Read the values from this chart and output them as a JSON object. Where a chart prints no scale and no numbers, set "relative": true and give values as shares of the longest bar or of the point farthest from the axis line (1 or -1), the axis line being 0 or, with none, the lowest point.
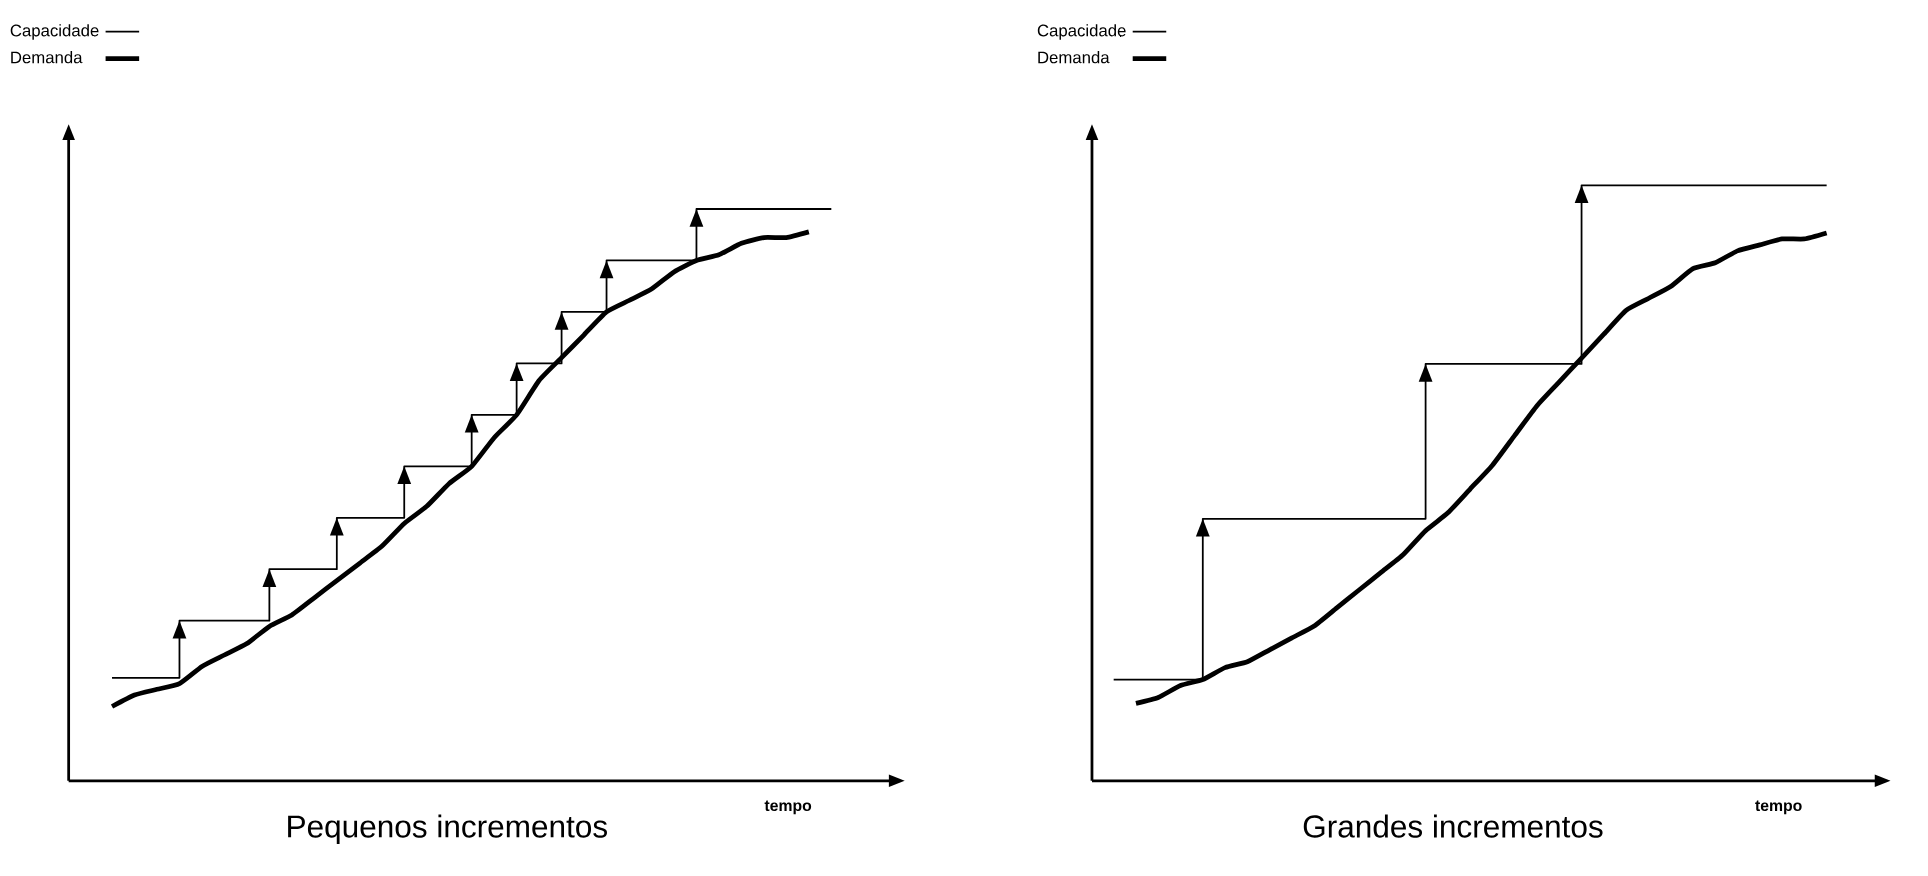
{
  "chart_data": [
    {
      "type": "line",
      "title": "Pequenos incrementos",
      "xlabel": "tempo",
      "relative": true,
      "legend": "top left",
      "marker": "none",
      "line_style": "solid",
      "categories": [
        null,
        null,
        null,
        null,
        null,
        null,
        null,
        null,
        null,
        null,
        null,
        null,
        null,
        null,
        null,
        null,
        null,
        null,
        null,
        null,
        null,
        null,
        null,
        null,
        null,
        null,
        null,
        null,
        null,
        null,
        null,
        null,
        null
      ],
      "series": [
        {
          "name": "Capacidade",
          "type": "step",
          "color": "#000000",
          "values": [
            0.18,
            0.18,
            0.18,
            0.28,
            0.28,
            0.28,
            0.28,
            0.37,
            0.37,
            0.37,
            0.46,
            0.46,
            0.46,
            0.55,
            0.55,
            0.55,
            0.64,
            0.64,
            0.73,
            0.73,
            0.82,
            0.82,
            0.91,
            0.91,
            0.91,
            0.91,
            1,
            1,
            1,
            1,
            1,
            1,
            1
          ]
        },
        {
          "name": "Demanda",
          "type": "line",
          "color": "#000000",
          "values": [
            0.13,
            0.15,
            0.16,
            0.17,
            0.2,
            0.22,
            0.24,
            0.27,
            0.29,
            0.32,
            0.35,
            0.38,
            0.41,
            0.45,
            0.48,
            0.52,
            0.55,
            0.6,
            0.64,
            0.7,
            0.74,
            0.78,
            0.82,
            0.84,
            0.86,
            0.89,
            0.91,
            0.92,
            0.94,
            0.95,
            0.95,
            0.96,
            null
          ]
        }
      ]
    },
    {
      "type": "line",
      "title": "Grandes incrementos",
      "xlabel": "tempo",
      "relative": true,
      "legend": "top left",
      "marker": "none",
      "line_style": "solid",
      "categories": [
        null,
        null,
        null,
        null,
        null,
        null,
        null,
        null,
        null,
        null,
        null,
        null,
        null,
        null,
        null,
        null,
        null,
        null,
        null,
        null,
        null,
        null,
        null,
        null,
        null,
        null,
        null,
        null,
        null,
        null,
        null,
        null,
        null
      ],
      "series": [
        {
          "name": "Capacidade",
          "type": "step",
          "color": "#000000",
          "values": [
            0.17,
            0.17,
            0.17,
            0.17,
            0.44,
            0.44,
            0.44,
            0.44,
            0.44,
            0.44,
            0.44,
            0.44,
            0.44,
            0.44,
            0.7,
            0.7,
            0.7,
            0.7,
            0.7,
            0.7,
            0.7,
            1,
            1,
            1,
            1,
            1,
            1,
            1,
            1,
            1,
            1,
            1,
            1
          ]
        },
        {
          "name": "Demanda",
          "type": "line",
          "color": "#000000",
          "values": [
            null,
            0.13,
            0.14,
            0.16,
            0.17,
            0.19,
            0.2,
            0.22,
            0.24,
            0.26,
            0.29,
            0.32,
            0.35,
            0.38,
            0.42,
            0.45,
            0.49,
            0.53,
            0.58,
            0.63,
            0.67,
            0.71,
            0.75,
            0.79,
            0.81,
            0.83,
            0.86,
            0.87,
            0.89,
            0.9,
            0.91,
            0.91,
            0.92
          ]
        }
      ]
    }
  ]
}
